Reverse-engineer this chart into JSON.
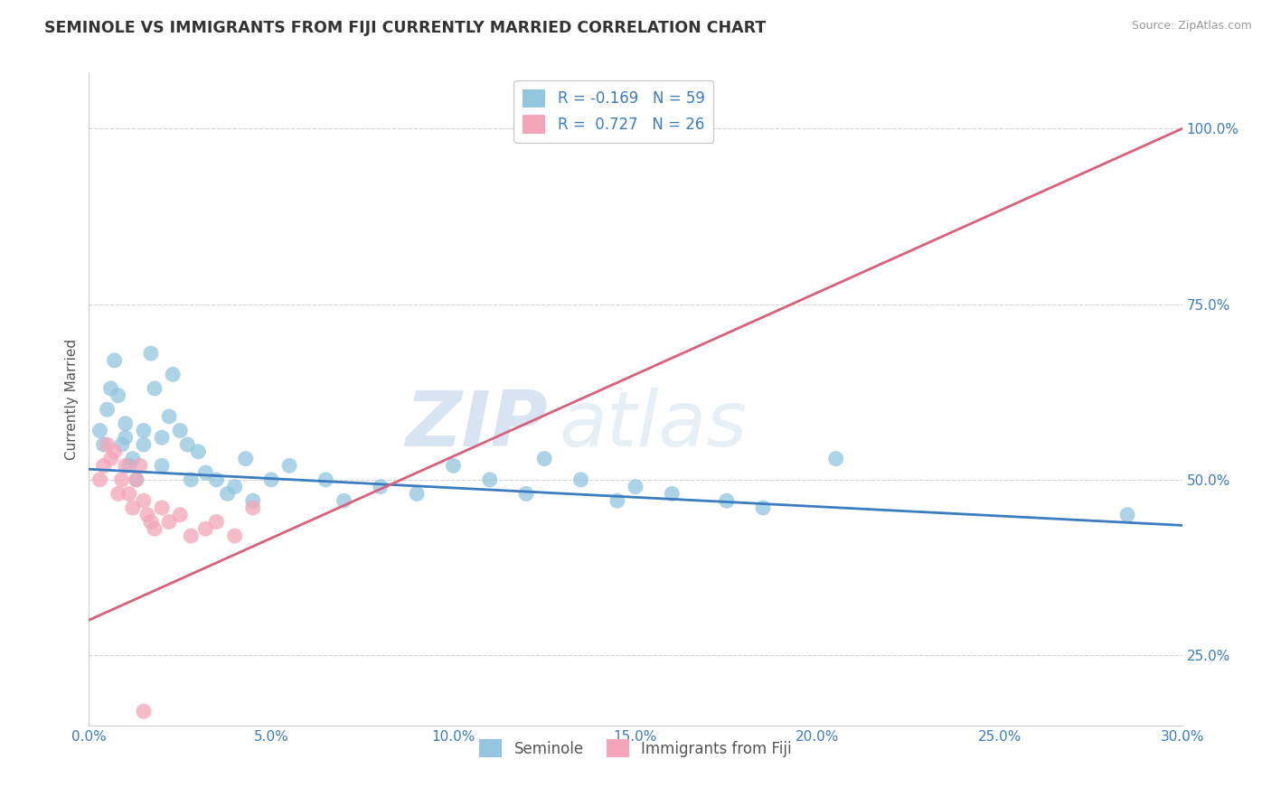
{
  "title": "SEMINOLE VS IMMIGRANTS FROM FIJI CURRENTLY MARRIED CORRELATION CHART",
  "source": "Source: ZipAtlas.com",
  "xlabel_vals": [
    0.0,
    5.0,
    10.0,
    15.0,
    20.0,
    25.0,
    30.0
  ],
  "ylabel_vals": [
    25.0,
    50.0,
    75.0,
    100.0
  ],
  "xlim": [
    0.0,
    30.0
  ],
  "ylim": [
    15.0,
    108.0
  ],
  "watermark": "ZIPatlas",
  "legend_label_1": "Seminole",
  "legend_label_2": "Immigrants from Fiji",
  "r1": -0.169,
  "n1": 59,
  "r2": 0.727,
  "n2": 26,
  "color1": "#92c5de",
  "color2": "#f4a5b8",
  "line_color1": "#3a7cbf",
  "line_color2": "#d9607a",
  "blue_line_x0": 0.0,
  "blue_line_y0": 51.5,
  "blue_line_x1": 30.0,
  "blue_line_y1": 43.5,
  "pink_line_x0": 0.0,
  "pink_line_y0": 30.0,
  "pink_line_x1": 30.0,
  "pink_line_y1": 100.0,
  "blue_x": [
    0.3,
    0.4,
    0.5,
    0.6,
    0.7,
    0.8,
    0.9,
    1.0,
    1.0,
    1.1,
    1.2,
    1.3,
    1.5,
    1.5,
    1.7,
    1.8,
    2.0,
    2.0,
    2.2,
    2.3,
    2.5,
    2.7,
    2.8,
    3.0,
    3.2,
    3.5,
    3.8,
    4.0,
    4.3,
    4.5,
    5.0,
    5.5,
    6.5,
    7.0,
    8.0,
    9.0,
    10.0,
    11.0,
    12.0,
    12.5,
    13.5,
    14.5,
    15.0,
    16.0,
    17.5,
    18.5,
    20.5,
    28.5
  ],
  "blue_y": [
    57,
    55,
    60,
    63,
    67,
    62,
    55,
    56,
    58,
    52,
    53,
    50,
    55,
    57,
    68,
    63,
    52,
    56,
    59,
    65,
    57,
    55,
    50,
    54,
    51,
    50,
    48,
    49,
    53,
    47,
    50,
    52,
    50,
    47,
    49,
    48,
    52,
    50,
    48,
    53,
    50,
    47,
    49,
    48,
    47,
    46,
    53,
    45
  ],
  "pink_x": [
    0.3,
    0.4,
    0.5,
    0.6,
    0.7,
    0.8,
    0.9,
    1.0,
    1.1,
    1.2,
    1.3,
    1.4,
    1.5,
    1.6,
    1.7,
    1.8,
    2.0,
    2.2,
    2.5,
    2.8,
    3.2,
    3.5,
    4.0,
    4.5,
    1.5
  ],
  "pink_y": [
    50,
    52,
    55,
    53,
    54,
    48,
    50,
    52,
    48,
    46,
    50,
    52,
    47,
    45,
    44,
    43,
    46,
    44,
    45,
    42,
    43,
    44,
    42,
    46,
    17
  ]
}
